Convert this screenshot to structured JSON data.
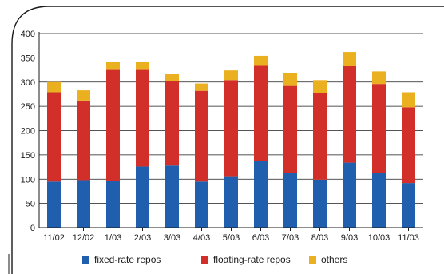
{
  "chart_data": {
    "type": "bar",
    "stacked": true,
    "categories": [
      "11/02",
      "12/02",
      "1/03",
      "2/03",
      "3/03",
      "4/03",
      "5/03",
      "6/03",
      "7/03",
      "8/03",
      "9/03",
      "10/03",
      "11/03"
    ],
    "series": [
      {
        "name": "fixed-rate repos",
        "color": "#1f5fae",
        "values": [
          95,
          98,
          96,
          126,
          128,
          95,
          106,
          138,
          113,
          99,
          134,
          113,
          92
        ]
      },
      {
        "name": "floating-rate repos",
        "color": "#d22e2a",
        "values": [
          184,
          164,
          229,
          199,
          174,
          187,
          198,
          197,
          179,
          178,
          199,
          183,
          156
        ]
      },
      {
        "name": "others",
        "color": "#ebb01f",
        "values": [
          21,
          21,
          16,
          16,
          14,
          15,
          20,
          19,
          26,
          27,
          29,
          26,
          31
        ]
      }
    ],
    "ylim": [
      0,
      400
    ],
    "yticks": [
      0,
      50,
      100,
      150,
      200,
      250,
      300,
      350,
      400
    ],
    "grid": true,
    "legend_position": "bottom",
    "title": "",
    "xlabel": "",
    "ylabel": ""
  },
  "colors": {
    "frame": "#1a1a1a",
    "gridline": "#1a1a1a",
    "axis": "#1a1a1a",
    "text": "#1a1a1a"
  }
}
